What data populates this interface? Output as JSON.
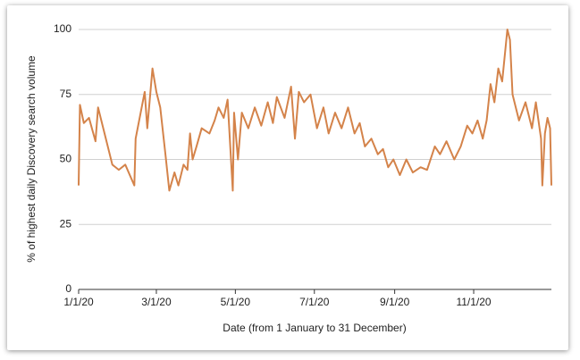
{
  "chart_data": {
    "type": "line",
    "xlabel": "Date (from 1 January to 31 December)",
    "ylabel": "% of highest daily Discovery search volume",
    "x": [
      "1/1/20",
      "1/2/20",
      "1/5/20",
      "1/9/20",
      "1/14/20",
      "1/16/20",
      "1/20/20",
      "1/23/20",
      "1/27/20",
      "2/1/20",
      "2/6/20",
      "2/13/20",
      "2/14/20",
      "2/21/20",
      "2/23/20",
      "2/27/20",
      "3/1/20",
      "3/4/20",
      "3/8/20",
      "3/11/20",
      "3/15/20",
      "3/18/20",
      "3/22/20",
      "3/25/20",
      "3/27/20",
      "3/29/20",
      "4/1/20",
      "4/5/20",
      "4/11/20",
      "4/15/20",
      "4/18/20",
      "4/22/20",
      "4/25/20",
      "4/29/20",
      "4/30/20",
      "5/3/20",
      "5/6/20",
      "5/11/20",
      "5/16/20",
      "5/21/20",
      "5/26/20",
      "5/30/20",
      "6/2/20",
      "6/8/20",
      "6/13/20",
      "6/16/20",
      "6/19/20",
      "6/23/20",
      "6/28/20",
      "7/3/20",
      "7/8/20",
      "7/12/20",
      "7/17/20",
      "7/22/20",
      "7/27/20",
      "8/1/20",
      "8/5/20",
      "8/9/20",
      "8/14/20",
      "8/19/20",
      "8/23/20",
      "8/27/20",
      "8/31/20",
      "9/5/20",
      "9/10/20",
      "9/15/20",
      "9/21/20",
      "9/26/20",
      "10/2/20",
      "10/6/20",
      "10/11/20",
      "10/17/20",
      "10/22/20",
      "10/27/20",
      "10/31/20",
      "11/4/20",
      "11/8/20",
      "11/11/20",
      "11/14/20",
      "11/17/20",
      "11/20/20",
      "11/23/20",
      "11/27/20",
      "11/29/20",
      "12/1/20",
      "12/6/20",
      "12/11/20",
      "12/16/20",
      "12/19/20",
      "12/23/20",
      "12/24/20",
      "12/26/20",
      "12/28/20",
      "12/30/20",
      "12/31/20"
    ],
    "series": [
      {
        "color": "#d4834a",
        "values": [
          40,
          71,
          64,
          66,
          57,
          70,
          62,
          56,
          48,
          46,
          48,
          40,
          58,
          76,
          62,
          85,
          76,
          70,
          52,
          38,
          45,
          40,
          48,
          46,
          60,
          50,
          55,
          62,
          60,
          65,
          70,
          66,
          73,
          38,
          68,
          50,
          68,
          62,
          70,
          63,
          72,
          64,
          74,
          66,
          78,
          58,
          76,
          72,
          75,
          62,
          70,
          60,
          68,
          62,
          70,
          60,
          64,
          55,
          58,
          52,
          54,
          47,
          50,
          44,
          50,
          45,
          47,
          46,
          55,
          52,
          57,
          50,
          55,
          63,
          60,
          65,
          58,
          65,
          79,
          72,
          85,
          80,
          100,
          96,
          75,
          65,
          72,
          62,
          72,
          58,
          40,
          60,
          66,
          62,
          40
        ]
      }
    ],
    "xlim": [
      "1/1/20",
      "12/31/20"
    ],
    "xticks": [
      "1/1/20",
      "3/1/20",
      "5/1/20",
      "7/1/20",
      "9/1/20",
      "11/1/20"
    ],
    "ylim": [
      0,
      100
    ],
    "yticks": [
      0,
      25,
      50,
      75,
      100
    ],
    "grid": true
  }
}
